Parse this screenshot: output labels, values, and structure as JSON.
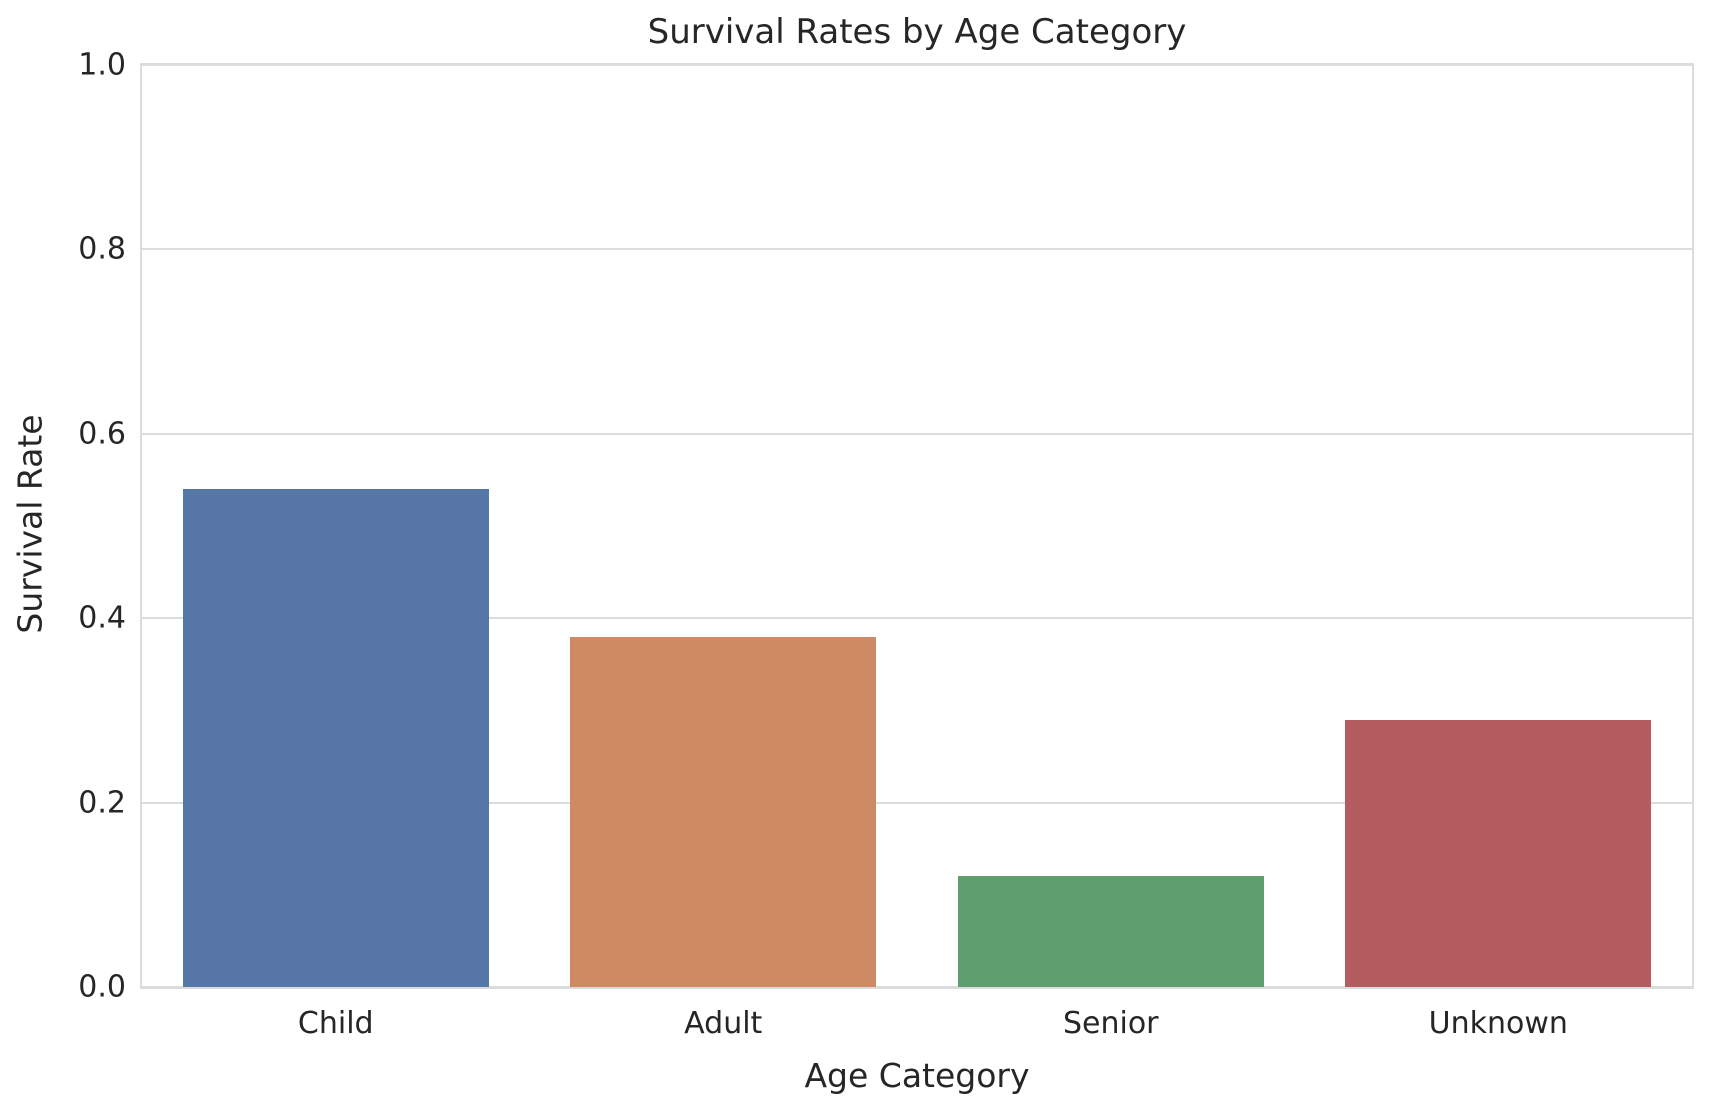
{
  "chart_data": {
    "type": "bar",
    "title": "Survival Rates by Age Category",
    "xlabel": "Age Category",
    "ylabel": "Survival Rate",
    "categories": [
      "Child",
      "Adult",
      "Senior",
      "Unknown"
    ],
    "values": [
      0.54,
      0.38,
      0.12,
      0.29
    ],
    "bar_colors": [
      "#5676A7",
      "#CE8A62",
      "#5F9E6E",
      "#B55C60"
    ],
    "ylim": [
      0.0,
      1.0
    ],
    "ytick_labels": [
      "0.0",
      "0.2",
      "0.4",
      "0.6",
      "0.8",
      "1.0"
    ],
    "grid": "horizontal gridlines on",
    "legend_position": "none",
    "grid_color": "#dcdcdc",
    "spine_color": "#dcdcdc",
    "text_color": "#262626",
    "background_color": "#ffffff",
    "bar_width_fraction": 0.79
  }
}
